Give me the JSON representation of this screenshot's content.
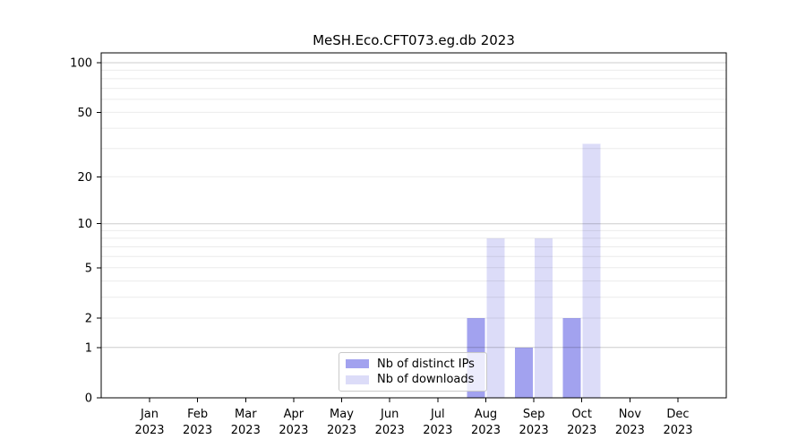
{
  "chart_data": {
    "type": "bar",
    "title": "MeSH.Eco.CFT073.eg.db 2023",
    "categories": [
      "Jan 2023",
      "Feb 2023",
      "Mar 2023",
      "Apr 2023",
      "May 2023",
      "Jun 2023",
      "Jul 2023",
      "Aug 2023",
      "Sep 2023",
      "Oct 2023",
      "Nov 2023",
      "Dec 2023"
    ],
    "series": [
      {
        "name": "Nb of distinct IPs",
        "color": "#a2a2ef",
        "values": [
          0,
          0,
          0,
          0,
          0,
          0,
          0,
          2,
          1,
          2,
          0,
          0
        ]
      },
      {
        "name": "Nb of downloads",
        "color": "#dcdcf8",
        "values": [
          0,
          0,
          0,
          0,
          0,
          0,
          0,
          8,
          8,
          32,
          0,
          0
        ]
      }
    ],
    "xlabel": "",
    "ylabel": "",
    "yscale": "log1p",
    "ylim": [
      0,
      115
    ],
    "ytick_labels": [
      0,
      1,
      2,
      5,
      10,
      20,
      50,
      100
    ],
    "decade_gridlines": [
      1,
      10,
      100
    ],
    "minor_gridlines": [
      2,
      3,
      4,
      5,
      6,
      7,
      8,
      9,
      20,
      30,
      40,
      50,
      60,
      70,
      80,
      90
    ],
    "grid": true,
    "legend_position": "lower center"
  },
  "colors": {
    "axis": "#000000",
    "decade_grid": "rgba(0,0,0,0.20)",
    "minor_grid": "rgba(0,0,0,0.08)",
    "text": "#000000"
  }
}
